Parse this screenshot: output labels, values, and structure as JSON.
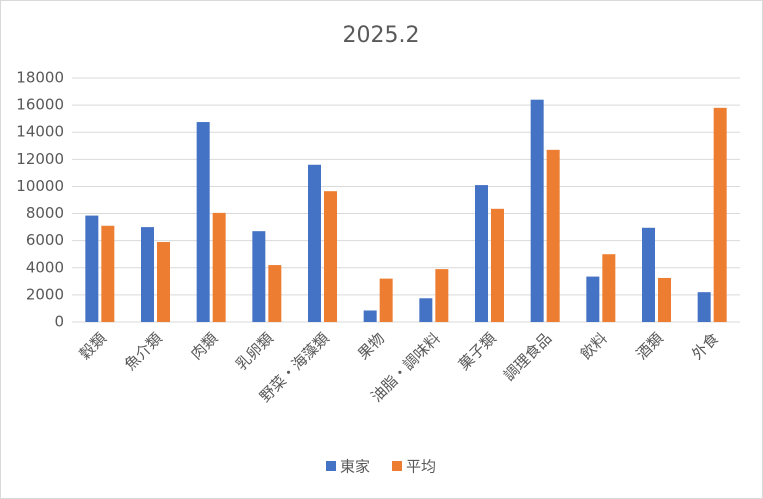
{
  "chart_data": {
    "type": "bar",
    "title": "2025.2",
    "categories": [
      "穀類",
      "魚介類",
      "肉類",
      "乳卵類",
      "野菜・海藻類",
      "果物",
      "油脂・調味料",
      "菓子類",
      "調理食品",
      "飲料",
      "酒類",
      "外食"
    ],
    "series": [
      {
        "name": "東家",
        "color": "#4472c4",
        "values": [
          7850,
          7000,
          14750,
          6700,
          11600,
          850,
          1750,
          10100,
          16400,
          3350,
          6950,
          2200
        ]
      },
      {
        "name": "平均",
        "color": "#ed7d31",
        "values": [
          7100,
          5900,
          8050,
          4200,
          9650,
          3200,
          3900,
          8350,
          12700,
          5000,
          3250,
          15800
        ]
      }
    ],
    "ylim": [
      0,
      18000
    ],
    "yticks": [
      0,
      2000,
      4000,
      6000,
      8000,
      10000,
      12000,
      14000,
      16000,
      18000
    ],
    "grid": true,
    "legend": "bottom"
  }
}
